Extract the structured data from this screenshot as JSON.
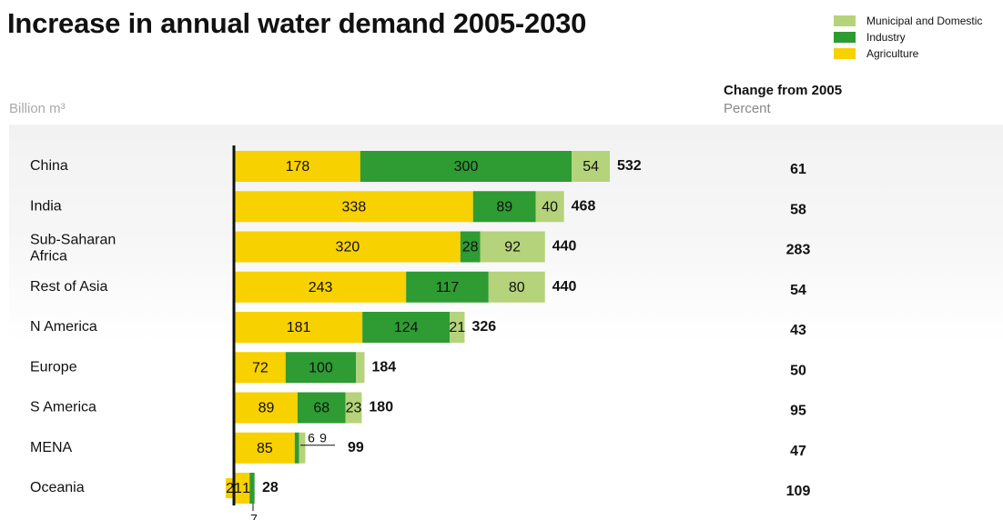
{
  "title": "Increase in annual water demand 2005-2030",
  "unit_label": "Billion m³",
  "change_header": {
    "title": "Change from 2005",
    "unit": "Percent"
  },
  "legend": [
    {
      "name": "Municipal and Domestic",
      "color": "#b5d37a"
    },
    {
      "name": "Industry",
      "color": "#2e9b33"
    },
    {
      "name": "Agriculture",
      "color": "#f8d100"
    }
  ],
  "chart_data": {
    "type": "bar",
    "orientation": "horizontal",
    "stacked": true,
    "categories": [
      "China",
      "India",
      "Sub-Saharan Africa",
      "Rest of Asia",
      "N America",
      "Europe",
      "S America",
      "MENA",
      "Oceania"
    ],
    "series": [
      {
        "name": "Agriculture",
        "color": "#f8d100",
        "values": [
          178,
          338,
          320,
          243,
          181,
          72,
          89,
          85,
          21
        ]
      },
      {
        "name": "Industry",
        "color": "#2e9b33",
        "values": [
          300,
          89,
          28,
          117,
          124,
          100,
          68,
          6,
          7
        ]
      },
      {
        "name": "Municipal and Domestic",
        "color": "#b5d37a",
        "values": [
          54,
          40,
          92,
          80,
          21,
          12,
          23,
          9,
          0
        ]
      }
    ],
    "totals": [
      532,
      468,
      440,
      440,
      326,
      184,
      180,
      99,
      28
    ],
    "change_from_2005_percent": [
      61,
      58,
      283,
      54,
      43,
      50,
      95,
      47,
      109
    ],
    "xlim": [
      0,
      540
    ],
    "grid": false,
    "legend_position": "top-right"
  }
}
